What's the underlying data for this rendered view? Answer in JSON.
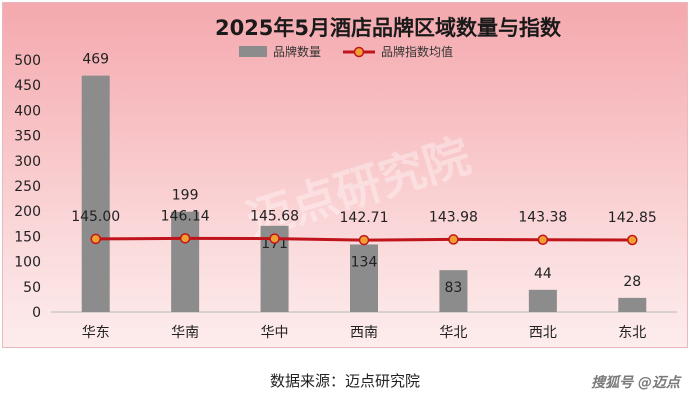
{
  "chart_data": {
    "type": "bar",
    "title": "2025年5月酒店品牌区域数量与指数",
    "categories": [
      "华东",
      "华南",
      "华中",
      "西南",
      "华北",
      "西北",
      "东北"
    ],
    "series": [
      {
        "name": "品牌数量",
        "kind": "bar",
        "values": [
          469,
          199,
          171,
          134,
          83,
          44,
          28
        ],
        "color": "#8c8c8c"
      },
      {
        "name": "品牌指数均值",
        "kind": "line",
        "values": [
          145.0,
          146.14,
          145.68,
          142.71,
          143.98,
          143.38,
          142.85
        ],
        "value_labels": [
          "145.00",
          "146.14",
          "145.68",
          "142.71",
          "143.98",
          "143.38",
          "142.85"
        ],
        "color": "#c0141c",
        "marker_color": "#f0a030"
      }
    ],
    "yticks": [
      "0",
      "50",
      "100",
      "150",
      "200",
      "250",
      "300",
      "350",
      "400",
      "450",
      "500"
    ],
    "ylim": [
      0,
      500
    ],
    "grid": false,
    "legend_position": "top"
  },
  "watermark_text": "迈点研究院",
  "source_note": "数据来源：迈点研究院",
  "corner_mark": "搜狐号 @迈点"
}
